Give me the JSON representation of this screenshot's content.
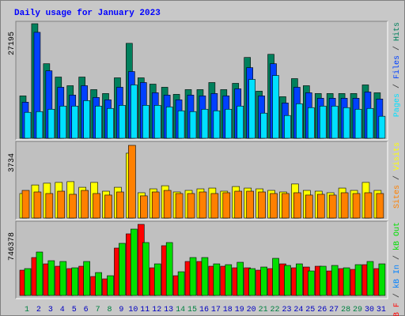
{
  "chart_data": [
    {
      "type": "bar",
      "title": "Daily usage for January 2023",
      "ylim": [
        0,
        27195
      ],
      "yticks": [
        27195
      ],
      "legend_separator": " / ",
      "legend_reverse": true,
      "series": [
        {
          "name": "Hits",
          "color": "#00805c",
          "values": [
            10060,
            27195,
            17700,
            14530,
            12480,
            14530,
            11550,
            10620,
            14350,
            22540,
            14350,
            12850,
            12110,
            10430,
            11550,
            11550,
            13230,
            11550,
            13040,
            19190,
            11180,
            19930,
            9870,
            14160,
            12480,
            10620,
            10620,
            10620,
            10620,
            12670,
            10800
          ]
        },
        {
          "name": "Files",
          "color": "#0040ff",
          "values": [
            8570,
            25150,
            16020,
            12110,
            10250,
            12480,
            9690,
            9130,
            12110,
            15840,
            13230,
            10810,
            10250,
            9130,
            10250,
            10060,
            10620,
            10060,
            11740,
            16770,
            10060,
            17700,
            8380,
            12110,
            10810,
            9500,
            9500,
            9500,
            9500,
            10990,
            9320
          ]
        },
        {
          "name": "Pages",
          "color": "#00e0ff",
          "values": [
            6150,
            6330,
            6890,
            7640,
            7640,
            8940,
            7640,
            7080,
            7820,
            12670,
            7820,
            7820,
            7450,
            6520,
            6330,
            6890,
            6520,
            6890,
            7640,
            13970,
            5960,
            14900,
            5400,
            8200,
            7270,
            7640,
            7640,
            7270,
            6890,
            7080,
            5220
          ]
        }
      ]
    },
    {
      "type": "bar",
      "ylim": [
        0,
        3734
      ],
      "yticks": [
        3734
      ],
      "legend_separator": " / ",
      "legend_reverse": true,
      "series": [
        {
          "name": "Visits",
          "color": "#ffff00",
          "values": [
            1260,
            1700,
            1790,
            1830,
            1870,
            1580,
            1830,
            1380,
            1580,
            3330,
            1300,
            1500,
            1660,
            1340,
            1420,
            1500,
            1540,
            1380,
            1620,
            1540,
            1500,
            1420,
            1340,
            1750,
            1420,
            1380,
            1300,
            1540,
            1420,
            1830,
            1420
          ]
        },
        {
          "name": "Sites",
          "color": "#ff8000",
          "values": [
            1420,
            1340,
            1260,
            1380,
            1220,
            1420,
            1260,
            1180,
            1340,
            3734,
            1140,
            1340,
            1420,
            1260,
            1260,
            1340,
            1260,
            1300,
            1380,
            1380,
            1340,
            1260,
            1260,
            1300,
            1180,
            1220,
            1180,
            1300,
            1260,
            1300,
            1260
          ]
        }
      ]
    },
    {
      "type": "bar",
      "ylim": [
        0,
        746378
      ],
      "yticks": [
        746378
      ],
      "legend_separator": " / ",
      "legend_reverse": false,
      "categories": [
        "1",
        "2",
        "3",
        "4",
        "5",
        "6",
        "7",
        "8",
        "9",
        "10",
        "11",
        "12",
        "13",
        "14",
        "15",
        "16",
        "17",
        "18",
        "19",
        "20",
        "21",
        "22",
        "23",
        "24",
        "25",
        "26",
        "27",
        "28",
        "29",
        "30",
        "31"
      ],
      "category_colors": [
        "#008040",
        "#0000c0",
        "#0000c0",
        "#0000c0",
        "#0000c0",
        "#0000c0",
        "#008040",
        "#008040",
        "#0000c0",
        "#0000c0",
        "#0000c0",
        "#0000c0",
        "#0000c0",
        "#008040",
        "#008040",
        "#0000c0",
        "#0000c0",
        "#0000c0",
        "#0000c0",
        "#0000c0",
        "#008040",
        "#008040",
        "#0000c0",
        "#0000c0",
        "#0000c0",
        "#0000c0",
        "#0000c0",
        "#008040",
        "#008040",
        "#0000c0",
        "#0000c0"
      ],
      "series": [
        {
          "name": "kB F",
          "color": "#ff0000",
          "values": [
            265400,
            398100,
            331700,
            306800,
            282000,
            306800,
            199000,
            174200,
            497600,
            646900,
            746378,
            290300,
            522500,
            207300,
            356600,
            356600,
            306800,
            306800,
            290300,
            290300,
            265400,
            282000,
            331700,
            290300,
            298500,
            306800,
            257100,
            282000,
            273700,
            323400,
            282000
          ]
        },
        {
          "name": "kB In",
          "color": "#0080ff",
          "values": [
            0,
            0,
            0,
            0,
            0,
            0,
            0,
            0,
            0,
            0,
            0,
            0,
            0,
            0,
            0,
            0,
            0,
            0,
            0,
            0,
            0,
            0,
            0,
            0,
            0,
            0,
            0,
            0,
            0,
            0,
            0
          ]
        },
        {
          "name": "kB Out",
          "color": "#00e000",
          "values": [
            282000,
            456100,
            364900,
            356600,
            290300,
            356600,
            240500,
            207300,
            547300,
            696600,
            555600,
            331700,
            555600,
            248800,
            398100,
            398100,
            331700,
            323400,
            348300,
            282000,
            298500,
            389800,
            315100,
            331700,
            257100,
            306800,
            315100,
            290300,
            323400,
            356600,
            331700
          ]
        }
      ]
    }
  ]
}
